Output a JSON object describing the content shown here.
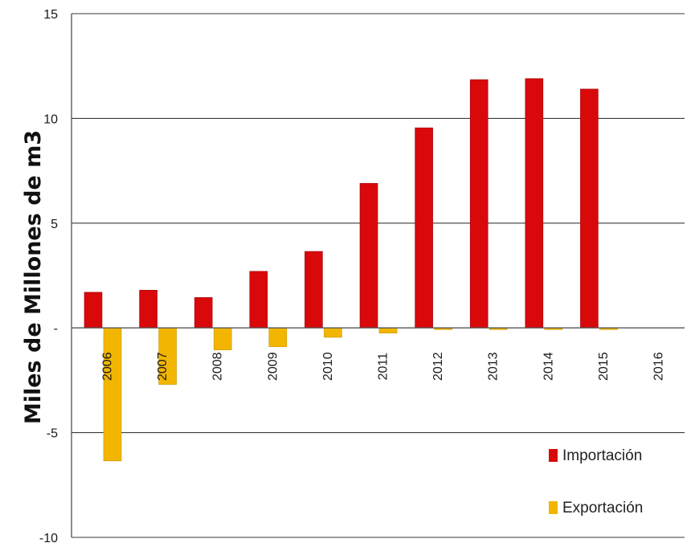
{
  "chart_data": {
    "type": "bar",
    "title": "",
    "xlabel": "",
    "ylabel": "Miles de Millones de m3",
    "categories": [
      "2006",
      "2007",
      "2008",
      "2009",
      "2010",
      "2011",
      "2012",
      "2013",
      "2014",
      "2015",
      "2016"
    ],
    "series": [
      {
        "name": "Importación",
        "color": "#d9080b",
        "values": [
          1.7,
          1.8,
          1.45,
          2.7,
          3.65,
          6.9,
          9.55,
          11.85,
          11.9,
          11.4,
          0
        ]
      },
      {
        "name": "Exportación",
        "color": "#f2b600",
        "values": [
          -6.35,
          -2.7,
          -1.05,
          -0.9,
          -0.45,
          -0.25,
          -0.08,
          -0.08,
          -0.08,
          -0.08,
          0
        ]
      }
    ],
    "ylim": [
      -10,
      15
    ],
    "yticks": [
      {
        "value": 15,
        "label": "15"
      },
      {
        "value": 10,
        "label": "10"
      },
      {
        "value": 5,
        "label": "5"
      },
      {
        "value": 0,
        "label": "-"
      },
      {
        "value": -5,
        "label": "-5"
      },
      {
        "value": -10,
        "label": "-10"
      }
    ],
    "grid": true,
    "legend_position": "bottom-right"
  }
}
